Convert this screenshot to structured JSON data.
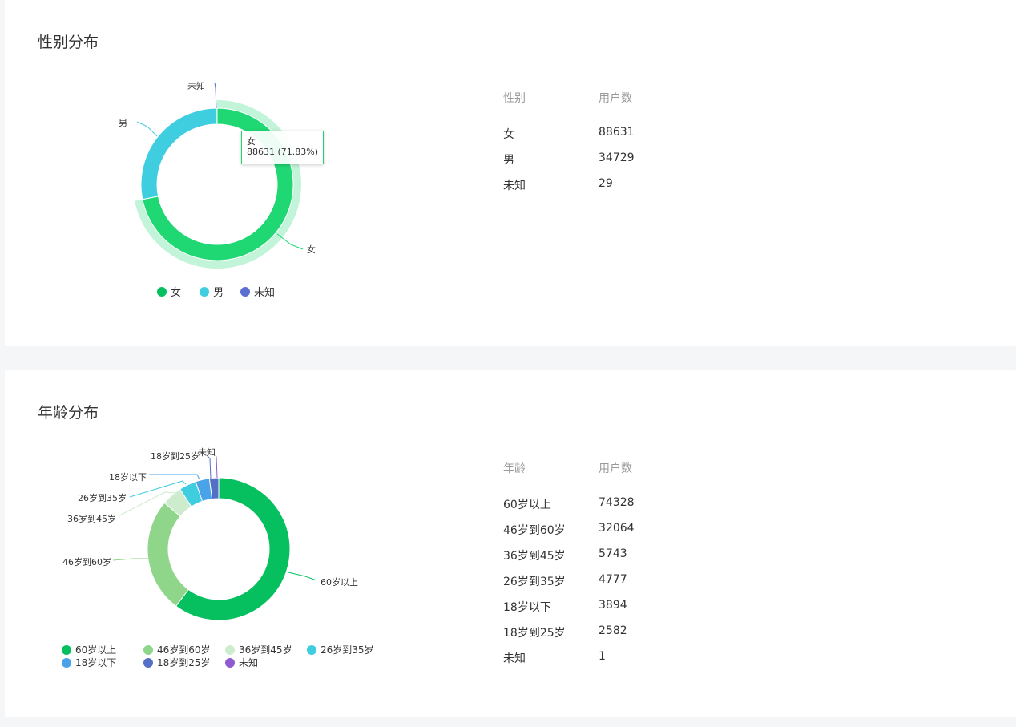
{
  "gender_section": {
    "title": "性别分布",
    "table": {
      "headers": [
        "性别",
        "用户数"
      ],
      "rows": [
        {
          "label": "女",
          "value": "88631"
        },
        {
          "label": "男",
          "value": "34729"
        },
        {
          "label": "未知",
          "value": "29"
        }
      ]
    },
    "tooltip": {
      "name": "女",
      "detail": "88631 (71.83%)"
    },
    "legend": [
      "女",
      "男",
      "未知"
    ]
  },
  "age_section": {
    "title": "年龄分布",
    "table": {
      "headers": [
        "年龄",
        "用户数"
      ],
      "rows": [
        {
          "label": "60岁以上",
          "value": "74328"
        },
        {
          "label": "46岁到60岁",
          "value": "32064"
        },
        {
          "label": "36岁到45岁",
          "value": "5743"
        },
        {
          "label": "26岁到35岁",
          "value": "4777"
        },
        {
          "label": "18岁以下",
          "value": "3894"
        },
        {
          "label": "18岁到25岁",
          "value": "2582"
        },
        {
          "label": "未知",
          "value": "1"
        }
      ]
    },
    "legend": [
      "60岁以上",
      "46岁到60岁",
      "36岁到45岁",
      "26岁到35岁",
      "18岁以下",
      "18岁到25岁",
      "未知"
    ]
  },
  "chart_data": [
    {
      "type": "pie",
      "categories": [
        "女",
        "男",
        "未知"
      ],
      "values": [
        88631,
        34729,
        29
      ],
      "colors": [
        "#1fd873",
        "#3fcde0",
        "#5470c6"
      ],
      "highlighted": "女"
    },
    {
      "type": "pie",
      "categories": [
        "60岁以上",
        "46岁到60岁",
        "36岁到45岁",
        "26岁到35岁",
        "18岁以下",
        "18岁到25岁",
        "未知"
      ],
      "values": [
        74328,
        32064,
        5743,
        4777,
        3894,
        2582,
        1
      ],
      "colors": [
        "#06bf5f",
        "#8fd68a",
        "#cdeccd",
        "#3fcde0",
        "#4aa3e8",
        "#5470c6",
        "#8e5cd0"
      ]
    }
  ]
}
